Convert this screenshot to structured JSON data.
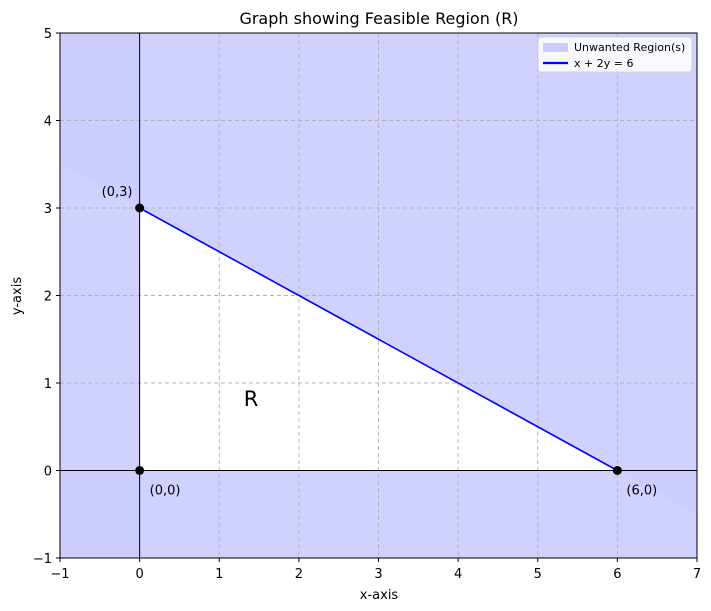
{
  "chart_data": {
    "type": "line",
    "title": "Graph showing Feasible Region (R)",
    "xlabel": "x-axis",
    "ylabel": "y-axis",
    "xlim": [
      -1,
      7
    ],
    "ylim": [
      -1,
      5
    ],
    "xticks": [
      -1,
      0,
      1,
      2,
      3,
      4,
      5,
      6,
      7
    ],
    "yticks": [
      -1,
      0,
      1,
      2,
      3,
      4,
      5
    ],
    "grid": true,
    "legend_position": "top-right",
    "legend": [
      {
        "label": "Unwanted Region(s)",
        "kind": "patch",
        "color": "#ccccff"
      },
      {
        "label": "x + 2y = 6",
        "kind": "line",
        "color": "#0000ff"
      }
    ],
    "series": [
      {
        "name": "x + 2y = 6",
        "x": [
          0,
          6
        ],
        "y": [
          3,
          0
        ],
        "color": "#0000ff"
      }
    ],
    "unwanted_regions": [
      {
        "constraint": "x + 2y > 6",
        "color": "#ccccff"
      },
      {
        "constraint": "x < 0",
        "color": "#ccccff"
      },
      {
        "constraint": "y < 0",
        "color": "#ccccff"
      }
    ],
    "points": [
      {
        "x": 0,
        "y": 3,
        "label": "(0,3)"
      },
      {
        "x": 0,
        "y": 0,
        "label": "(0,0)"
      },
      {
        "x": 6,
        "y": 0,
        "label": "(6,0)"
      }
    ],
    "region_label": {
      "text": "R",
      "x": 1.4,
      "y": 0.85
    }
  }
}
